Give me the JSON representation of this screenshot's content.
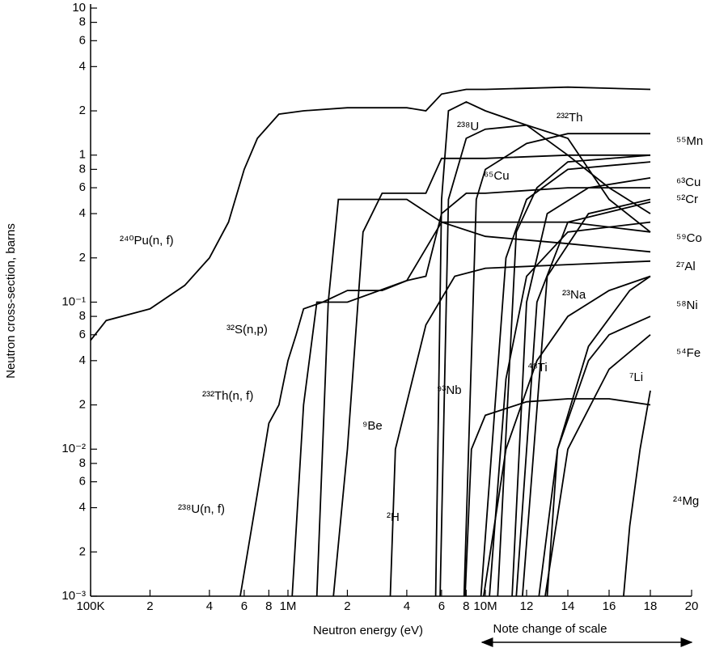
{
  "chart_data": {
    "type": "line",
    "xlabel": "Neutron energy (eV)",
    "ylabel": "Neutron cross-section, barns",
    "annotation": "Note change of scale",
    "xscale": {
      "log": [
        100000,
        10000000
      ],
      "linear": [
        10000000,
        20000000
      ]
    },
    "yscale": "log",
    "xlim": [
      100000,
      20000000
    ],
    "ylim": [
      0.001,
      10
    ],
    "xticks": [
      {
        "value": 100000,
        "label": "100K"
      },
      {
        "value": 200000,
        "label": "2"
      },
      {
        "value": 400000,
        "label": "4"
      },
      {
        "value": 600000,
        "label": "6"
      },
      {
        "value": 800000,
        "label": "8"
      },
      {
        "value": 1000000,
        "label": "1M"
      },
      {
        "value": 2000000,
        "label": "2"
      },
      {
        "value": 4000000,
        "label": "4"
      },
      {
        "value": 6000000,
        "label": "6"
      },
      {
        "value": 8000000,
        "label": "8"
      },
      {
        "value": 10000000,
        "label": "10M"
      },
      {
        "value": 12000000,
        "label": "12"
      },
      {
        "value": 14000000,
        "label": "14"
      },
      {
        "value": 16000000,
        "label": "16"
      },
      {
        "value": 18000000,
        "label": "18"
      },
      {
        "value": 20000000,
        "label": "20"
      }
    ],
    "yticks": [
      {
        "value": 0.001,
        "label": "10⁻³"
      },
      {
        "value": 0.002,
        "label": "2"
      },
      {
        "value": 0.004,
        "label": "4"
      },
      {
        "value": 0.006,
        "label": "6"
      },
      {
        "value": 0.008,
        "label": "8"
      },
      {
        "value": 0.01,
        "label": "10⁻²"
      },
      {
        "value": 0.02,
        "label": "2"
      },
      {
        "value": 0.04,
        "label": "4"
      },
      {
        "value": 0.06,
        "label": "6"
      },
      {
        "value": 0.08,
        "label": "8"
      },
      {
        "value": 0.1,
        "label": "10⁻¹"
      },
      {
        "value": 0.2,
        "label": "2"
      },
      {
        "value": 0.4,
        "label": "4"
      },
      {
        "value": 0.6,
        "label": "6"
      },
      {
        "value": 0.8,
        "label": "8"
      },
      1,
      2,
      4,
      6,
      8,
      10
    ],
    "series": [
      {
        "name": "²⁴⁰Pu(n, f)",
        "color": "#000000",
        "x": [
          100000,
          120000,
          200000,
          300000,
          400000,
          500000,
          600000,
          700000,
          900000,
          1200000,
          2000000,
          4000000,
          5000000,
          6000000,
          8000000,
          10000000,
          14000000,
          18000000
        ],
        "values": [
          0.055,
          0.075,
          0.09,
          0.13,
          0.2,
          0.35,
          0.8,
          1.3,
          1.9,
          2.0,
          2.1,
          2.1,
          2.0,
          2.6,
          2.8,
          2.8,
          2.9,
          2.8
        ]
      },
      {
        "name": "²³⁸U(n, f)",
        "color": "#000000",
        "x": [
          573000,
          700000,
          800000,
          900000,
          1000000,
          1100000,
          1200000,
          1500000,
          2000000,
          3000000,
          4000000,
          5000000,
          6000000,
          8000000,
          10000000,
          14000000,
          18000000
        ],
        "values": [
          0.001,
          0.005,
          0.015,
          0.02,
          0.04,
          0.06,
          0.09,
          0.1,
          0.12,
          0.12,
          0.14,
          0.15,
          0.4,
          0.55,
          0.55,
          0.6,
          0.6
        ]
      },
      {
        "name": "²³²Th(n, f)",
        "color": "#000000",
        "x": [
          1050000,
          1200000,
          1400000,
          2000000,
          4000000,
          6000000,
          10000000,
          14000000,
          18000000
        ],
        "values": [
          0.001,
          0.02,
          0.1,
          0.1,
          0.14,
          0.35,
          0.35,
          0.35,
          0.3
        ]
      },
      {
        "name": "³²S(n,p)",
        "color": "#000000",
        "x": [
          1400000,
          1600000,
          1800000,
          2500000,
          4000000,
          6000000,
          10000000,
          14000000,
          18000000
        ],
        "values": [
          0.001,
          0.1,
          0.5,
          0.5,
          0.5,
          0.35,
          0.28,
          0.25,
          0.22
        ]
      },
      {
        "name": "⁹Be",
        "color": "#000000",
        "x": [
          1700000,
          2000000,
          2400000,
          3000000,
          5000000,
          6000000,
          10000000,
          14000000,
          18000000
        ],
        "values": [
          0.001,
          0.01,
          0.3,
          0.55,
          0.55,
          0.95,
          0.95,
          1.0,
          1.0
        ]
      },
      {
        "name": "²H",
        "color": "#000000",
        "x": [
          3300000,
          3500000,
          5000000,
          7000000,
          10000000,
          14000000,
          18000000
        ],
        "values": [
          0.001,
          0.01,
          0.07,
          0.15,
          0.17,
          0.18,
          0.19
        ]
      },
      {
        "name": "²³⁸U",
        "color": "#000000",
        "x": [
          5600000,
          6000000,
          6500000,
          8000000,
          10000000,
          12000000,
          14000000,
          16000000,
          18000000
        ],
        "values": [
          0.001,
          0.5,
          2.0,
          2.3,
          2.0,
          1.6,
          1.0,
          0.6,
          0.4
        ]
      },
      {
        "name": "²³²Th",
        "color": "#000000",
        "x": [
          5900000,
          6500000,
          8000000,
          10000000,
          12000000,
          14000000,
          16000000,
          18000000
        ],
        "values": [
          0.001,
          0.5,
          1.3,
          1.5,
          1.6,
          1.3,
          0.5,
          0.3
        ]
      },
      {
        "name": "⁹³Nb",
        "color": "#000000",
        "x": [
          7800000,
          9000000,
          10000000,
          12000000,
          14000000,
          18000000
        ],
        "values": [
          0.001,
          0.5,
          0.8,
          1.2,
          1.4,
          1.4
        ]
      },
      {
        "name": "⁶⁵Cu",
        "color": "#000000",
        "x": [
          9500000,
          11000000,
          12000000,
          14000000,
          18000000
        ],
        "values": [
          0.001,
          0.2,
          0.5,
          0.8,
          0.9
        ]
      },
      {
        "name": "⁵⁵Mn",
        "color": "#000000",
        "x": [
          10600000,
          11500000,
          12500000,
          14000000,
          18000000
        ],
        "values": [
          0.001,
          0.3,
          0.6,
          0.9,
          1.0
        ]
      },
      {
        "name": "⁶³Cu",
        "color": "#000000",
        "x": [
          11300000,
          12000000,
          13000000,
          15000000,
          18000000
        ],
        "values": [
          0.001,
          0.1,
          0.4,
          0.6,
          0.7
        ]
      },
      {
        "name": "⁵²Cr",
        "color": "#000000",
        "x": [
          11500000,
          12500000,
          14000000,
          18000000
        ],
        "values": [
          0.001,
          0.1,
          0.35,
          0.48
        ]
      },
      {
        "name": "⁵⁹Co",
        "color": "#000000",
        "x": [
          11800000,
          13000000,
          15000000,
          18000000
        ],
        "values": [
          0.001,
          0.15,
          0.4,
          0.5
        ]
      },
      {
        "name": "²⁷Al",
        "color": "#000000",
        "x": [
          13000000,
          13500000,
          15000000,
          17000000,
          18000000
        ],
        "values": [
          0.001,
          0.01,
          0.05,
          0.12,
          0.15
        ]
      },
      {
        "name": "²³Na",
        "color": "#000000",
        "x": [
          9800000,
          11000000,
          12500000,
          14000000,
          16000000,
          18000000
        ],
        "values": [
          0.001,
          0.01,
          0.04,
          0.08,
          0.12,
          0.15
        ]
      },
      {
        "name": "⁵⁸Ni",
        "color": "#000000",
        "x": [
          12600000,
          13500000,
          15000000,
          16000000,
          18000000
        ],
        "values": [
          0.001,
          0.01,
          0.04,
          0.06,
          0.08
        ]
      },
      {
        "name": "⁴⁸Ti",
        "color": "#000000",
        "x": [
          10200000,
          11000000,
          12000000,
          14000000,
          18000000
        ],
        "values": [
          0.001,
          0.03,
          0.15,
          0.3,
          0.35
        ]
      },
      {
        "name": "⁵⁴Fe",
        "color": "#000000",
        "x": [
          12900000,
          14000000,
          16000000,
          18000000
        ],
        "values": [
          0.001,
          0.01,
          0.035,
          0.06
        ]
      },
      {
        "name": "⁷Li",
        "color": "#000000",
        "x": [
          7900000,
          8500000,
          10000000,
          12000000,
          14000000,
          16000000,
          18000000
        ],
        "values": [
          0.001,
          0.01,
          0.017,
          0.021,
          0.022,
          0.022,
          0.02
        ]
      },
      {
        "name": "²⁴Mg",
        "color": "#000000",
        "x": [
          16700000,
          17000000,
          17500000,
          18000000
        ],
        "values": [
          0.001,
          0.003,
          0.01,
          0.025
        ]
      }
    ]
  }
}
